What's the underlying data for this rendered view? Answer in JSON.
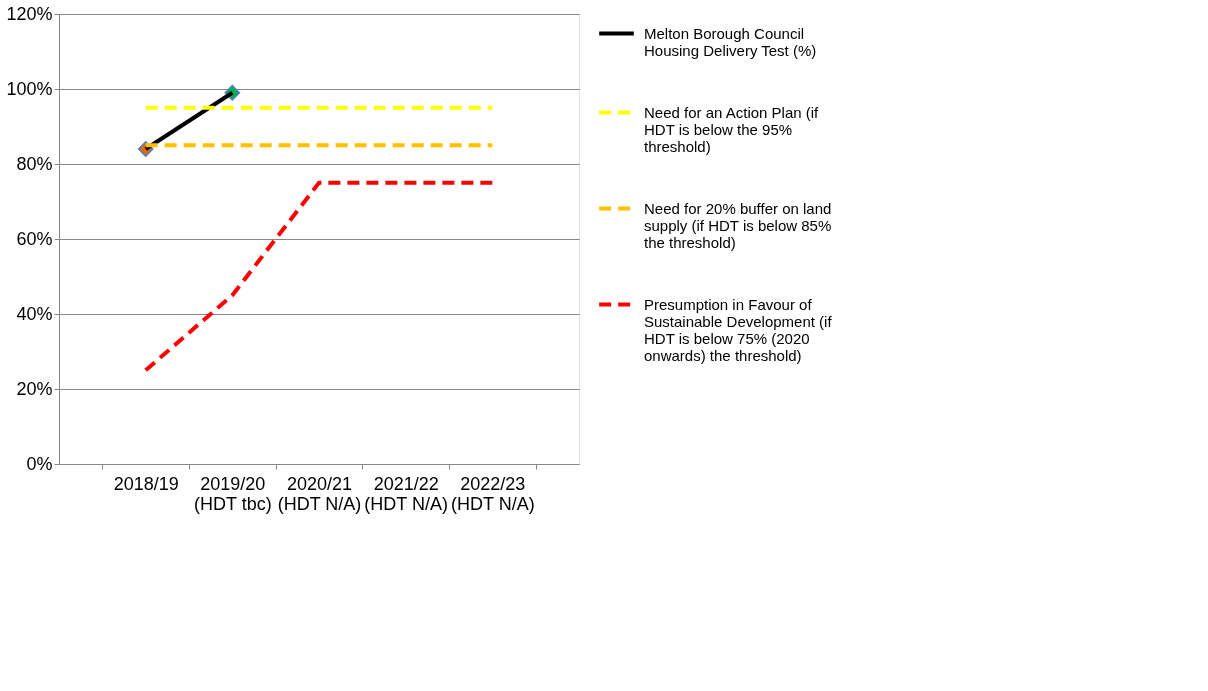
{
  "chart_data": {
    "type": "line",
    "categories": [
      "2018/19",
      "2019/20 (HDT tbc)",
      "2020/21 (HDT N/A)",
      "2021/22 (HDT N/A)",
      "2022/23 (HDT N/A)"
    ],
    "series": [
      {
        "name": "Melton Borough Council Housing Delivery Test (%)",
        "color": "#000000",
        "values": [
          84,
          99,
          null,
          null,
          null
        ],
        "marker": "diamond",
        "colors": [
          "#e36c09",
          "#00b050",
          null,
          null,
          null
        ],
        "line_style": "solid"
      },
      {
        "name": "Need for an Action Plan (if HDT is below the 95% threshold)",
        "color": "#ffff00",
        "values": [
          95,
          95,
          95,
          95,
          95
        ],
        "line_style": "dashed"
      },
      {
        "name": "Need for 20% buffer on land supply (if HDT is below 85% the threshold)",
        "color": "#ffc000",
        "values": [
          85,
          85,
          85,
          85,
          85
        ],
        "line_style": "dashed"
      },
      {
        "name": "Presumption in Favour of Sustainable Development (if HDT is below 75% (2020 onwards) the threshold)",
        "color": "#ff0000",
        "values": [
          25,
          45,
          75,
          75,
          75
        ],
        "line_style": "dashed"
      }
    ],
    "ylim": [
      0,
      120
    ],
    "yticks": [
      {
        "value": 0,
        "label": "0%"
      },
      {
        "value": 20,
        "label": "20%"
      },
      {
        "value": 40,
        "label": "40%"
      },
      {
        "value": 60,
        "label": "60%"
      },
      {
        "value": 80,
        "label": "80%"
      },
      {
        "value": 100,
        "label": "100%"
      },
      {
        "value": 120,
        "label": "120%"
      }
    ],
    "grid": "y",
    "legend": "right"
  }
}
